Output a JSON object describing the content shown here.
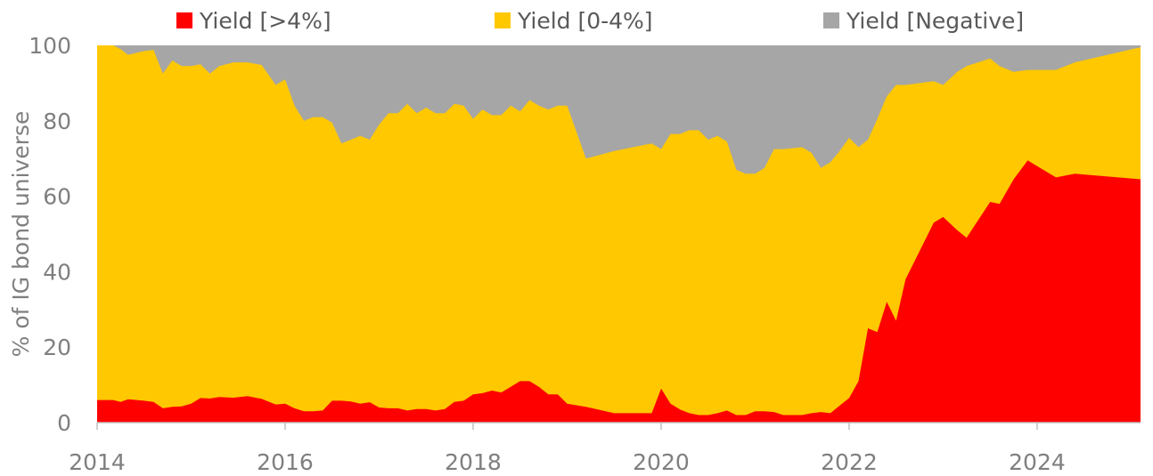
{
  "chart_data": {
    "type": "area",
    "stacked": true,
    "title": "",
    "xlabel": "",
    "ylabel": "% of IG bond universe",
    "xlim": [
      2014,
      2025.1
    ],
    "ylim": [
      0,
      100
    ],
    "x_ticks": [
      2014,
      2016,
      2018,
      2020,
      2022,
      2024
    ],
    "y_ticks": [
      0,
      20,
      40,
      60,
      80,
      100
    ],
    "grid": false,
    "legend_position": "top",
    "series": [
      {
        "name": "Yield [>4%]",
        "color": "#ff0000",
        "points": [
          [
            2014.0,
            6
          ],
          [
            2014.17,
            6
          ],
          [
            2014.25,
            5.5
          ],
          [
            2014.33,
            6.2
          ],
          [
            2014.5,
            5.8
          ],
          [
            2014.6,
            5.5
          ],
          [
            2014.7,
            3.8
          ],
          [
            2014.8,
            4.2
          ],
          [
            2014.9,
            4.3
          ],
          [
            2015.0,
            5
          ],
          [
            2015.1,
            6.5
          ],
          [
            2015.2,
            6.4
          ],
          [
            2015.3,
            6.8
          ],
          [
            2015.45,
            6.6
          ],
          [
            2015.6,
            7
          ],
          [
            2015.75,
            6.3
          ],
          [
            2015.9,
            4.8
          ],
          [
            2016.0,
            5
          ],
          [
            2016.1,
            3.8
          ],
          [
            2016.2,
            3
          ],
          [
            2016.3,
            3
          ],
          [
            2016.4,
            3.2
          ],
          [
            2016.5,
            5.8
          ],
          [
            2016.6,
            5.8
          ],
          [
            2016.7,
            5.6
          ],
          [
            2016.8,
            5
          ],
          [
            2016.9,
            5.4
          ],
          [
            2017.0,
            4
          ],
          [
            2017.1,
            3.8
          ],
          [
            2017.2,
            3.8
          ],
          [
            2017.3,
            3.2
          ],
          [
            2017.4,
            3.6
          ],
          [
            2017.5,
            3.6
          ],
          [
            2017.6,
            3.2
          ],
          [
            2017.7,
            3.6
          ],
          [
            2017.8,
            5.5
          ],
          [
            2017.9,
            5.8
          ],
          [
            2018.0,
            7.5
          ],
          [
            2018.1,
            7.8
          ],
          [
            2018.2,
            8.5
          ],
          [
            2018.3,
            8
          ],
          [
            2018.4,
            9.5
          ],
          [
            2018.5,
            11
          ],
          [
            2018.6,
            11
          ],
          [
            2018.7,
            9.5
          ],
          [
            2018.8,
            7.5
          ],
          [
            2018.9,
            7.5
          ],
          [
            2019.0,
            5
          ],
          [
            2019.2,
            4.2
          ],
          [
            2019.5,
            2.5
          ],
          [
            2019.9,
            2.5
          ],
          [
            2020.0,
            9
          ],
          [
            2020.1,
            5
          ],
          [
            2020.2,
            3.5
          ],
          [
            2020.3,
            2.5
          ],
          [
            2020.4,
            2
          ],
          [
            2020.5,
            2
          ],
          [
            2020.6,
            2.5
          ],
          [
            2020.7,
            3.2
          ],
          [
            2020.8,
            2
          ],
          [
            2020.9,
            2
          ],
          [
            2021.0,
            3
          ],
          [
            2021.1,
            3
          ],
          [
            2021.2,
            2.8
          ],
          [
            2021.3,
            2
          ],
          [
            2021.5,
            2
          ],
          [
            2021.6,
            2.5
          ],
          [
            2021.7,
            2.8
          ],
          [
            2021.8,
            2.5
          ],
          [
            2021.9,
            4.5
          ],
          [
            2022.0,
            6.5
          ],
          [
            2022.1,
            11
          ],
          [
            2022.2,
            25
          ],
          [
            2022.3,
            24
          ],
          [
            2022.4,
            32
          ],
          [
            2022.5,
            27
          ],
          [
            2022.6,
            38
          ],
          [
            2022.9,
            53
          ],
          [
            2023.0,
            54.5
          ],
          [
            2023.15,
            51
          ],
          [
            2023.25,
            49
          ],
          [
            2023.5,
            58.5
          ],
          [
            2023.6,
            58
          ],
          [
            2023.75,
            64.5
          ],
          [
            2023.9,
            69.5
          ],
          [
            2024.0,
            68
          ],
          [
            2024.2,
            65
          ],
          [
            2024.4,
            66
          ],
          [
            2025.1,
            64.5
          ]
        ]
      },
      {
        "name": "Yield [0-4%]",
        "color": "#ffc800",
        "points": [
          [
            2014.0,
            100
          ],
          [
            2014.17,
            100
          ],
          [
            2014.25,
            99
          ],
          [
            2014.33,
            97.5
          ],
          [
            2014.5,
            98.5
          ],
          [
            2014.6,
            98.8
          ],
          [
            2014.7,
            92.5
          ],
          [
            2014.8,
            96
          ],
          [
            2014.9,
            94.5
          ],
          [
            2015.0,
            94.5
          ],
          [
            2015.1,
            95
          ],
          [
            2015.2,
            92.5
          ],
          [
            2015.3,
            94.5
          ],
          [
            2015.45,
            95.5
          ],
          [
            2015.6,
            95.5
          ],
          [
            2015.75,
            94.8
          ],
          [
            2015.9,
            89.5
          ],
          [
            2016.0,
            91
          ],
          [
            2016.1,
            84
          ],
          [
            2016.2,
            80
          ],
          [
            2016.3,
            81
          ],
          [
            2016.4,
            81
          ],
          [
            2016.5,
            79.5
          ],
          [
            2016.6,
            74
          ],
          [
            2016.7,
            75
          ],
          [
            2016.8,
            76
          ],
          [
            2016.9,
            75
          ],
          [
            2017.0,
            79
          ],
          [
            2017.1,
            82
          ],
          [
            2017.2,
            82
          ],
          [
            2017.3,
            84.5
          ],
          [
            2017.4,
            82
          ],
          [
            2017.5,
            83.5
          ],
          [
            2017.6,
            82
          ],
          [
            2017.7,
            82
          ],
          [
            2017.8,
            84.5
          ],
          [
            2017.9,
            84
          ],
          [
            2018.0,
            80.5
          ],
          [
            2018.1,
            83
          ],
          [
            2018.2,
            81.5
          ],
          [
            2018.3,
            81.5
          ],
          [
            2018.4,
            84
          ],
          [
            2018.5,
            82.5
          ],
          [
            2018.6,
            85.5
          ],
          [
            2018.7,
            84
          ],
          [
            2018.8,
            83
          ],
          [
            2018.9,
            84
          ],
          [
            2019.0,
            84
          ],
          [
            2019.2,
            70
          ],
          [
            2019.5,
            72
          ],
          [
            2019.9,
            74
          ],
          [
            2020.0,
            72.5
          ],
          [
            2020.1,
            76.5
          ],
          [
            2020.2,
            76.5
          ],
          [
            2020.3,
            77.5
          ],
          [
            2020.4,
            77.5
          ],
          [
            2020.5,
            75
          ],
          [
            2020.6,
            76
          ],
          [
            2020.7,
            74.5
          ],
          [
            2020.8,
            67
          ],
          [
            2020.9,
            66
          ],
          [
            2021.0,
            66
          ],
          [
            2021.1,
            67.5
          ],
          [
            2021.2,
            72.5
          ],
          [
            2021.3,
            72.5
          ],
          [
            2021.5,
            73
          ],
          [
            2021.6,
            71.5
          ],
          [
            2021.7,
            67.5
          ],
          [
            2021.8,
            69
          ],
          [
            2021.9,
            72
          ],
          [
            2022.0,
            75.5
          ],
          [
            2022.1,
            73
          ],
          [
            2022.2,
            75
          ],
          [
            2022.3,
            80.5
          ],
          [
            2022.4,
            86.5
          ],
          [
            2022.5,
            89.5
          ],
          [
            2022.6,
            89.5
          ],
          [
            2022.9,
            90.5
          ],
          [
            2023.0,
            89.5
          ],
          [
            2023.15,
            93
          ],
          [
            2023.25,
            94.5
          ],
          [
            2023.5,
            96.5
          ],
          [
            2023.6,
            94.5
          ],
          [
            2023.75,
            93
          ],
          [
            2023.9,
            93.5
          ],
          [
            2024.0,
            93.5
          ],
          [
            2024.2,
            93.5
          ],
          [
            2024.4,
            95.5
          ],
          [
            2025.1,
            99.5
          ]
        ]
      },
      {
        "name": "Yield [Negative]",
        "color": "#a6a6a6",
        "points": [
          [
            2014.0,
            100
          ],
          [
            2025.1,
            100
          ]
        ]
      }
    ]
  }
}
